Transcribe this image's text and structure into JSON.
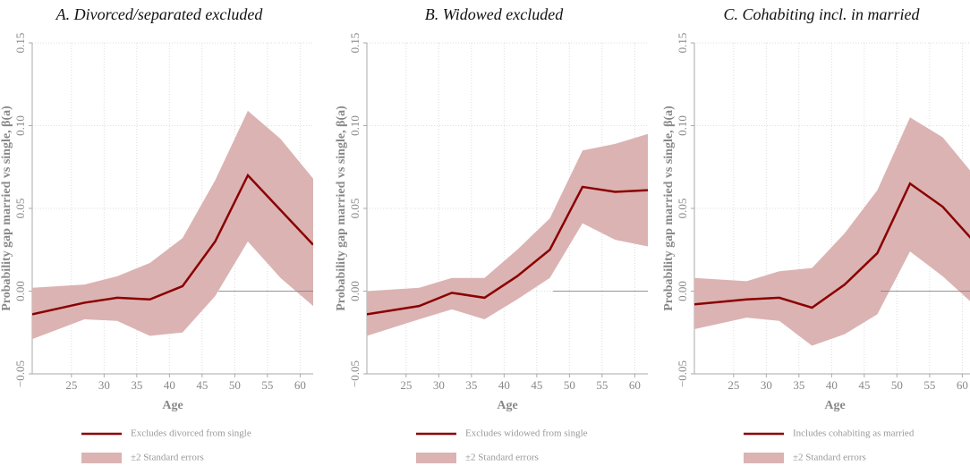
{
  "chart_data": [
    {
      "type": "line",
      "title": "A. Divorced/separated excluded",
      "x_label": "Age",
      "y_label": "Probability gap married vs single, β(a)",
      "x": [
        19,
        27,
        32,
        37,
        42,
        47,
        52,
        57,
        62
      ],
      "series": [
        {
          "name": "Excludes divorced from single",
          "color": "#8b0000",
          "values": [
            -0.014,
            -0.007,
            -0.004,
            -0.005,
            0.003,
            0.03,
            0.07,
            0.049,
            0.028
          ]
        }
      ],
      "band": {
        "name": "±2 Standard errors",
        "color": "#dbb3b3",
        "upper": [
          0.002,
          0.004,
          0.009,
          0.017,
          0.032,
          0.067,
          0.109,
          0.092,
          0.068
        ],
        "lower": [
          -0.029,
          -0.017,
          -0.018,
          -0.027,
          -0.025,
          -0.003,
          0.03,
          0.008,
          -0.009
        ]
      },
      "reference_line": {
        "y": 0,
        "x": [
          47.5,
          62
        ]
      },
      "xlim": [
        19,
        62
      ],
      "xticks": [
        25,
        30,
        35,
        40,
        45,
        50,
        55,
        60
      ],
      "ylim": [
        -0.05,
        0.15
      ],
      "yticks": [
        {
          "value": -0.05,
          "label": "−0.05"
        },
        {
          "value": 0,
          "label": "0.00"
        },
        0.05,
        {
          "value": 0.1,
          "label": "0.10"
        },
        0.15
      ],
      "grid": true
    },
    {
      "type": "line",
      "title": "B. Widowed excluded",
      "x_label": "Age",
      "y_label": "Probability gap married vs single, β(a)",
      "x": [
        19,
        27,
        32,
        37,
        42,
        47,
        52,
        57,
        62
      ],
      "series": [
        {
          "name": "Excludes widowed from single",
          "color": "#8b0000",
          "values": [
            -0.014,
            -0.009,
            -0.001,
            -0.004,
            0.009,
            0.025,
            0.063,
            0.06,
            0.061
          ]
        }
      ],
      "band": {
        "name": "±2 Standard errors",
        "color": "#dbb3b3",
        "upper": [
          0.0,
          0.002,
          0.008,
          0.008,
          0.025,
          0.044,
          0.085,
          0.089,
          0.095
        ],
        "lower": [
          -0.027,
          -0.017,
          -0.011,
          -0.017,
          -0.005,
          0.008,
          0.041,
          0.031,
          0.027
        ]
      },
      "reference_line": {
        "y": 0,
        "x": [
          47.5,
          62
        ]
      },
      "xlim": [
        19,
        62
      ],
      "xticks": [
        25,
        30,
        35,
        40,
        45,
        50,
        55,
        60
      ],
      "ylim": [
        -0.05,
        0.15
      ],
      "yticks": [
        {
          "value": -0.05,
          "label": "−0.05"
        },
        {
          "value": 0,
          "label": "0.00"
        },
        0.05,
        {
          "value": 0.1,
          "label": "0.10"
        },
        0.15
      ],
      "grid": true
    },
    {
      "type": "line",
      "title": "C. Cohabiting incl. in married",
      "x_label": "Age",
      "y_label": "Probability gap married vs single, β(a)",
      "x": [
        19,
        27,
        32,
        37,
        42,
        47,
        52,
        57,
        62
      ],
      "series": [
        {
          "name": "Includes cohabiting as married",
          "color": "#8b0000",
          "values": [
            -0.008,
            -0.005,
            -0.004,
            -0.01,
            0.004,
            0.023,
            0.065,
            0.051,
            0.029
          ]
        }
      ],
      "band": {
        "name": "±2 Standard errors",
        "color": "#dbb3b3",
        "upper": [
          0.008,
          0.006,
          0.012,
          0.014,
          0.035,
          0.061,
          0.105,
          0.093,
          0.069
        ],
        "lower": [
          -0.023,
          -0.016,
          -0.018,
          -0.033,
          -0.026,
          -0.014,
          0.024,
          0.009,
          -0.009
        ]
      },
      "reference_line": {
        "y": 0,
        "x": [
          47.5,
          62
        ]
      },
      "xlim": [
        19,
        62
      ],
      "xticks": [
        25,
        30,
        35,
        40,
        45,
        50,
        55,
        60
      ],
      "ylim": [
        -0.05,
        0.15
      ],
      "yticks": [
        {
          "value": -0.05,
          "label": "−0.05"
        },
        {
          "value": 0,
          "label": "0.00"
        },
        0.05,
        {
          "value": 0.1,
          "label": "0.10"
        },
        0.15
      ],
      "grid": true
    }
  ]
}
